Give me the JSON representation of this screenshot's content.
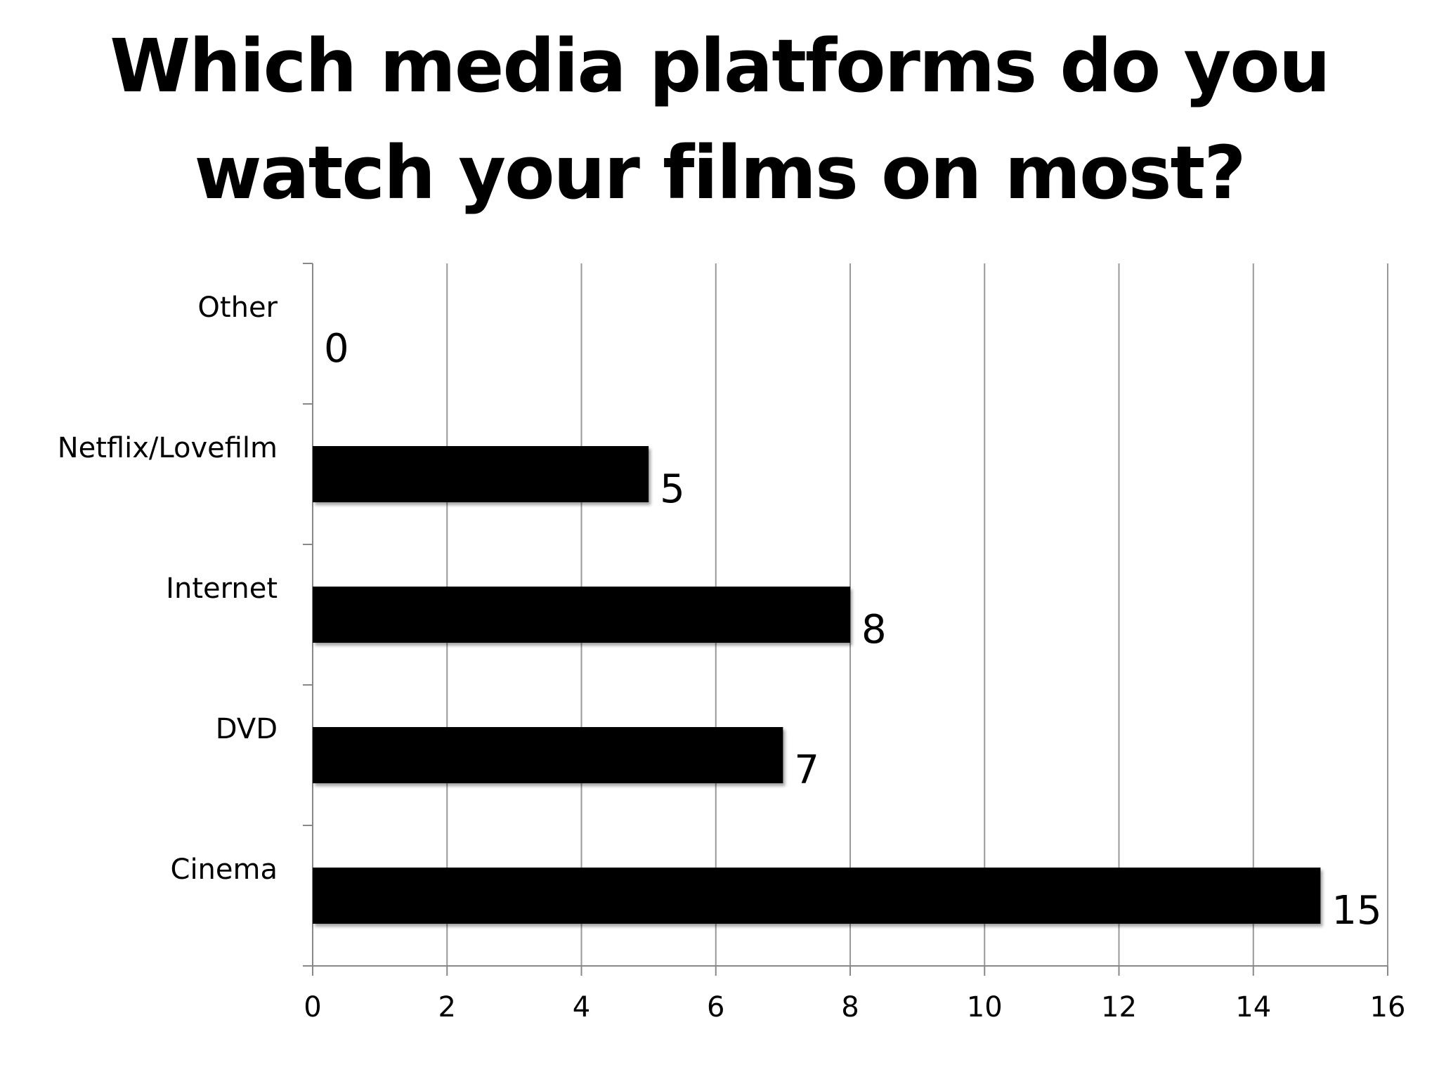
{
  "chart_data": {
    "type": "bar",
    "orientation": "horizontal",
    "title": "Which media platforms do you watch your films on most?",
    "categories": [
      "Other",
      "Netflix/Lovefilm",
      "Internet",
      "DVD",
      "Cinema"
    ],
    "values": [
      0,
      5,
      8,
      7,
      15
    ],
    "xlabel": "",
    "ylabel": "",
    "xlim": [
      0,
      16
    ],
    "xticks": [
      "0",
      "2",
      "4",
      "6",
      "8",
      "10",
      "12",
      "14",
      "16"
    ],
    "grid": "vertical",
    "legend": "none",
    "data_labels": true,
    "colors": {
      "bar": "#000000",
      "grid": "#999999",
      "axis": "#888888",
      "text": "#000000"
    }
  }
}
